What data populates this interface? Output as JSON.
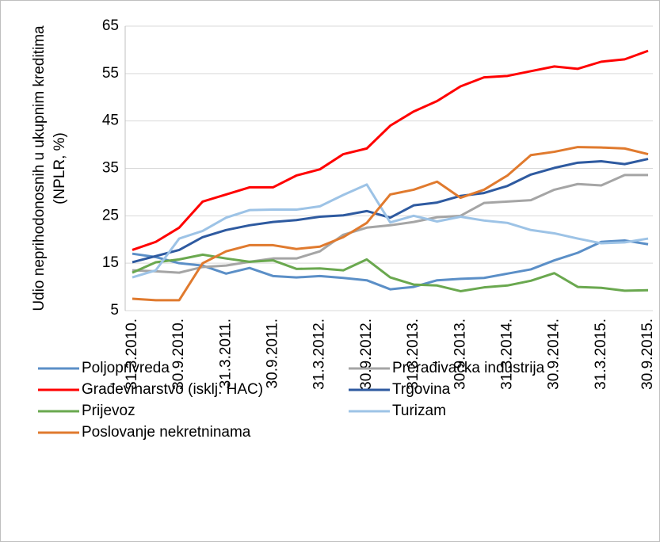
{
  "chart_data": {
    "type": "line",
    "ylabel": [
      "Udio neprihodonosnih u ukupnim kreditima",
      "(NPLR, %)"
    ],
    "categories": [
      "31.3.2010.",
      null,
      "30.9.2010.",
      null,
      "31.3.2011.",
      null,
      "30.9.2011.",
      null,
      "31.3.2012.",
      null,
      "30.9.2012.",
      null,
      "31.3.2013.",
      null,
      "30.9.2013.",
      null,
      "31.3.2014.",
      null,
      "30.9.2014.",
      null,
      "31.3.2015.",
      null,
      "30.9.2015."
    ],
    "ylim": [
      5,
      65
    ],
    "yticks": [
      5,
      15,
      25,
      35,
      45,
      55,
      65
    ],
    "grid": true,
    "series": [
      {
        "name": "Poljoprivreda",
        "color": "#5b8fc7",
        "values": [
          17,
          16.3,
          15,
          14.5,
          12.8,
          14,
          12.3,
          12,
          12.3,
          11.9,
          11.4,
          9.5,
          10,
          11.4,
          11.7,
          11.9,
          12.8,
          13.7,
          15.6,
          17.2,
          19.5,
          19.8,
          19
        ]
      },
      {
        "name": "Prerađivačka industrija",
        "color": "#a5a5a5",
        "values": [
          13.5,
          13.3,
          13,
          14.2,
          14.5,
          15.3,
          16,
          16,
          17.5,
          21,
          22.5,
          23,
          23.7,
          24.7,
          25,
          27.7,
          28,
          28.3,
          30.5,
          31.7,
          31.4,
          33.6,
          33.6
        ]
      },
      {
        "name": "Građevinarstvo (isklj. HAC)",
        "color": "#ff0000",
        "values": [
          17.8,
          19.5,
          22.5,
          28,
          29.5,
          31,
          31,
          33.5,
          34.8,
          38,
          39.2,
          44,
          47,
          49.2,
          52.3,
          54.2,
          54.5,
          55.5,
          56.5,
          56,
          57.5,
          58,
          59.8
        ]
      },
      {
        "name": "Trgovina",
        "color": "#2e5aa0",
        "values": [
          15.2,
          16.5,
          17.8,
          20.5,
          22,
          23,
          23.7,
          24.1,
          24.8,
          25.1,
          26,
          24.6,
          27.2,
          27.8,
          29.2,
          29.8,
          31.3,
          33.7,
          35.1,
          36.2,
          36.5,
          35.9,
          37
        ]
      },
      {
        "name": "Prijevoz",
        "color": "#6aa84f",
        "values": [
          13,
          15.2,
          15.8,
          16.8,
          16,
          15.3,
          15.6,
          13.8,
          13.9,
          13.5,
          15.8,
          12,
          10.5,
          10.3,
          9.1,
          9.9,
          10.3,
          11.3,
          12.9,
          10,
          9.8,
          9.2,
          9.3
        ]
      },
      {
        "name": "Turizam",
        "color": "#9dc3e6",
        "values": [
          12,
          13.5,
          20.2,
          21.8,
          24.6,
          26.2,
          26.3,
          26.3,
          27,
          29.4,
          31.6,
          23.6,
          25,
          23.8,
          24.8,
          24,
          23.5,
          22,
          21.3,
          20.2,
          19.2,
          19.4,
          20.2
        ]
      },
      {
        "name": "Poslovanje nekretninama",
        "color": "#e07a2e",
        "values": [
          7.5,
          7.2,
          7.2,
          15,
          17.5,
          18.8,
          18.8,
          18,
          18.5,
          20.5,
          23.5,
          29.5,
          30.5,
          32.2,
          28.8,
          30.5,
          33.5,
          37.8,
          38.5,
          39.5,
          39.4,
          39.2,
          38
        ]
      }
    ]
  }
}
